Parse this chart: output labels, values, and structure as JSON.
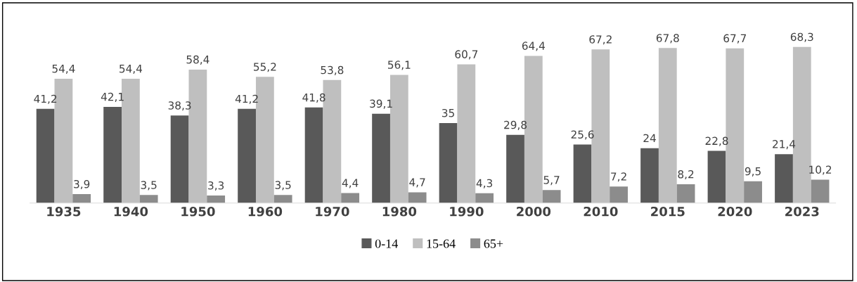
{
  "chart_data": {
    "type": "bar",
    "categories": [
      "1935",
      "1940",
      "1950",
      "1960",
      "1970",
      "1980",
      "1990",
      "2000",
      "2010",
      "2015",
      "2020",
      "2023"
    ],
    "series": [
      {
        "name": "0-14",
        "color": "#595959",
        "values": [
          41.2,
          42.1,
          38.3,
          41.2,
          41.8,
          39.1,
          35,
          29.8,
          25.6,
          24,
          22.8,
          21.4
        ],
        "value_labels": [
          "41,2",
          "42,1",
          "38,3",
          "41,2",
          "41,8",
          "39,1",
          "35",
          "29,8",
          "25,6",
          "24",
          "22,8",
          "21,4"
        ]
      },
      {
        "name": "15-64",
        "color": "#bfbfbf",
        "values": [
          54.4,
          54.4,
          58.4,
          55.2,
          53.8,
          56.1,
          60.7,
          64.4,
          67.2,
          67.8,
          67.7,
          68.3
        ],
        "value_labels": [
          "54,4",
          "54,4",
          "58,4",
          "55,2",
          "53,8",
          "56,1",
          "60,7",
          "64,4",
          "67,2",
          "67,8",
          "67,7",
          "68,3"
        ]
      },
      {
        "name": "65+",
        "color": "#8c8c8c",
        "values": [
          3.9,
          3.5,
          3.3,
          3.5,
          4.4,
          4.7,
          4.3,
          5.7,
          7.2,
          8.2,
          9.5,
          10.2
        ],
        "value_labels": [
          "3,9",
          "3,5",
          "3,3",
          "3,5",
          "4,4",
          "4,7",
          "4,3",
          "5,7",
          "7,2",
          "8,2",
          "9,5",
          "10,2"
        ]
      }
    ],
    "legend": "bottom",
    "grid": false,
    "tick_labels": "x"
  }
}
